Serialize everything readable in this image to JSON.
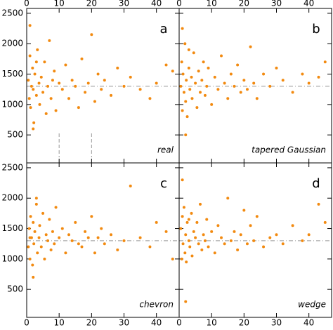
{
  "chart_data": [
    {
      "type": "scatter",
      "label": "a",
      "name": "real",
      "color": "#f28a10",
      "hline": 1300,
      "dashed_x": [
        10,
        20
      ],
      "xlim": [
        0,
        47
      ],
      "ylim": [
        40,
        2580
      ],
      "xticks": [
        0,
        10,
        20,
        30,
        40
      ],
      "yticks": [
        500,
        1000,
        1500,
        2000,
        2500
      ],
      "x": [
        0.5,
        0.8,
        1,
        1.2,
        1.5,
        1.8,
        2,
        2.2,
        2.5,
        3,
        3.3,
        3.8,
        4,
        4.5,
        5,
        5.5,
        6,
        6.5,
        7,
        7.5,
        8,
        8.5,
        9,
        10,
        11,
        12,
        13,
        14,
        15,
        16,
        17,
        18,
        19,
        20,
        21,
        22,
        23,
        24,
        26,
        28,
        30,
        32,
        35,
        38,
        40,
        43,
        45,
        1,
        2,
        3
      ],
      "y": [
        1400,
        1100,
        1800,
        950,
        1300,
        1600,
        1250,
        700,
        1500,
        1150,
        1900,
        1350,
        1000,
        1450,
        1200,
        1700,
        850,
        1300,
        2050,
        1100,
        1400,
        1550,
        900,
        1350,
        1250,
        1650,
        1100,
        1400,
        1300,
        950,
        1750,
        1200,
        1350,
        2150,
        1050,
        1500,
        1250,
        1400,
        1150,
        1600,
        1300,
        1450,
        1250,
        1100,
        1350,
        1650,
        1550,
        2300,
        600,
        1700
      ]
    },
    {
      "type": "scatter",
      "label": "b",
      "name": "tapered Gaussian",
      "color": "#f28a10",
      "hline": 1300,
      "xlim": [
        0,
        47
      ],
      "ylim": [
        40,
        2580
      ],
      "xticks": [
        0,
        10,
        20,
        30,
        40
      ],
      "yticks": [
        500,
        1000,
        1500,
        2000,
        2500
      ],
      "x": [
        0.5,
        0.8,
        1,
        1.2,
        1.5,
        1.8,
        2,
        2.2,
        2.5,
        3,
        3.3,
        3.8,
        4,
        4.5,
        5,
        5.5,
        6,
        6.5,
        7,
        7.5,
        8,
        8.5,
        9,
        10,
        11,
        12,
        13,
        14,
        15,
        16,
        17,
        18,
        19,
        20,
        21,
        22,
        23,
        24,
        26,
        28,
        30,
        32,
        35,
        38,
        40,
        43,
        45,
        1,
        2,
        3
      ],
      "y": [
        1300,
        1700,
        900,
        1500,
        1200,
        2000,
        1050,
        1400,
        800,
        1600,
        1250,
        1450,
        1100,
        1850,
        1350,
        950,
        1550,
        1200,
        1400,
        1700,
        1150,
        1300,
        1600,
        1000,
        1450,
        1250,
        1800,
        1350,
        1100,
        1500,
        1300,
        1650,
        1200,
        1400,
        1250,
        1950,
        1350,
        1100,
        1500,
        1300,
        1600,
        1400,
        1200,
        1500,
        1350,
        1450,
        1700,
        2250,
        500,
        1900
      ]
    },
    {
      "type": "scatter",
      "label": "c",
      "name": "chevron",
      "color": "#f28a10",
      "hline": 1300,
      "xlim": [
        0,
        47
      ],
      "ylim": [
        40,
        2580
      ],
      "xticks": [
        0,
        10,
        20,
        30,
        40
      ],
      "yticks": [
        500,
        1000,
        1500,
        2000,
        2500
      ],
      "x": [
        0.5,
        0.8,
        1,
        1.2,
        1.5,
        1.8,
        2,
        2.2,
        2.5,
        3,
        3.3,
        3.8,
        4,
        4.5,
        5,
        5.5,
        6,
        6.5,
        7,
        7.5,
        8,
        8.5,
        9,
        10,
        11,
        12,
        13,
        14,
        15,
        16,
        17,
        18,
        19,
        20,
        21,
        22,
        23,
        24,
        26,
        28,
        30,
        32,
        35,
        38,
        40,
        43,
        45,
        1,
        2,
        3
      ],
      "y": [
        1200,
        1500,
        1000,
        1700,
        1350,
        900,
        1600,
        1250,
        1450,
        1900,
        1100,
        1350,
        1550,
        1200,
        1750,
        1000,
        1400,
        1300,
        1650,
        1150,
        1450,
        1250,
        1850,
        1350,
        1500,
        1100,
        1400,
        1300,
        1600,
        1250,
        1200,
        1450,
        1350,
        1700,
        1100,
        1350,
        1500,
        1250,
        1400,
        1150,
        1300,
        2200,
        1350,
        1200,
        1600,
        1450,
        1000,
        1350,
        700,
        2000
      ]
    },
    {
      "type": "scatter",
      "label": "d",
      "name": "wedge",
      "color": "#f28a10",
      "hline": 1300,
      "xlim": [
        0,
        47
      ],
      "ylim": [
        40,
        2580
      ],
      "xticks": [
        0,
        10,
        20,
        30,
        40
      ],
      "yticks": [
        500,
        1000,
        1500,
        2000,
        2500
      ],
      "x": [
        0.5,
        0.8,
        1,
        1.2,
        1.5,
        1.8,
        2,
        2.2,
        2.5,
        3,
        3.3,
        3.8,
        4,
        4.5,
        5,
        5.5,
        6,
        6.5,
        7,
        7.5,
        8,
        8.5,
        9,
        10,
        11,
        12,
        13,
        14,
        15,
        16,
        17,
        18,
        19,
        20,
        21,
        22,
        23,
        24,
        26,
        28,
        30,
        32,
        35,
        38,
        40,
        43,
        45,
        1,
        2,
        3
      ],
      "y": [
        1500,
        1000,
        1700,
        1250,
        1850,
        1100,
        1400,
        950,
        1600,
        1300,
        1200,
        1750,
        1050,
        1450,
        1350,
        1600,
        1250,
        1900,
        1150,
        1400,
        1300,
        1650,
        1200,
        1450,
        1100,
        1550,
        1350,
        1250,
        2000,
        1300,
        1450,
        1150,
        1400,
        1800,
        1250,
        1550,
        1300,
        1700,
        1200,
        1350,
        1400,
        1250,
        1550,
        1300,
        1400,
        1900,
        1600,
        2300,
        300,
        1650
      ]
    }
  ]
}
